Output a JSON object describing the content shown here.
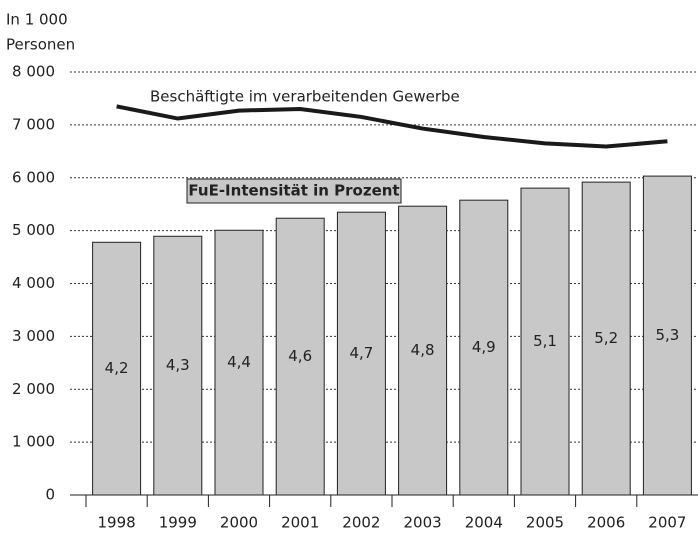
{
  "chart_data": {
    "type": "bar_line",
    "y_axis_label": [
      "In 1 000",
      "Personen"
    ],
    "categories": [
      "1998",
      "1999",
      "2000",
      "2001",
      "2002",
      "2003",
      "2004",
      "2005",
      "2006",
      "2007"
    ],
    "ylim": [
      0,
      8000
    ],
    "yticks": [
      0,
      {
        "value": 1000,
        "label": "1 000"
      },
      {
        "value": 2000,
        "label": "2 000"
      },
      {
        "value": 3000,
        "label": "3 000"
      },
      {
        "value": 4000,
        "label": "4 000"
      },
      {
        "value": 5000,
        "label": "5 000"
      },
      {
        "value": 6000,
        "label": "6 000"
      },
      {
        "value": 7000,
        "label": "7 000"
      },
      {
        "value": 8000,
        "label": "8 000"
      }
    ],
    "y2lim": [
      0,
      7.03
    ],
    "grid": true,
    "series": [
      {
        "name": "FuE-Intensität in Prozent",
        "type": "bar",
        "axis": "y2",
        "color": "#c8c8c8",
        "values": [
          4.2,
          4.3,
          4.4,
          4.6,
          4.7,
          4.8,
          4.9,
          5.1,
          5.2,
          5.3
        ],
        "value_labels": [
          "4,2",
          "4,3",
          "4,4",
          "4,6",
          "4,7",
          "4,8",
          "4,9",
          "5,1",
          "5,2",
          "5,3"
        ]
      },
      {
        "name": "Beschäftigte im verarbeitenden Gewerbe",
        "type": "line",
        "color": "#1a1a1a",
        "values": [
          7350,
          7120,
          7270,
          7300,
          7150,
          6930,
          6770,
          6650,
          6590,
          6690
        ]
      }
    ]
  }
}
